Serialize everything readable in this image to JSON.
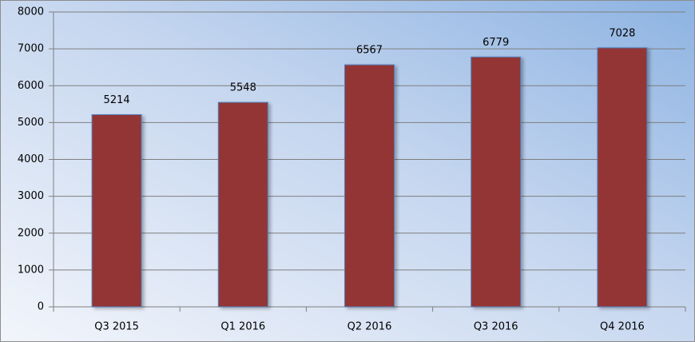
{
  "chart_data": {
    "type": "bar",
    "categories": [
      "Q3 2015",
      "Q1 2016",
      "Q2 2016",
      "Q3 2016",
      "Q4 2016"
    ],
    "values": [
      5214,
      5548,
      6567,
      6779,
      7028
    ],
    "color": "#943634",
    "ylim": [
      0,
      8000
    ],
    "yticks": [
      0,
      1000,
      2000,
      3000,
      4000,
      5000,
      6000,
      7000,
      8000
    ],
    "grid": true
  }
}
